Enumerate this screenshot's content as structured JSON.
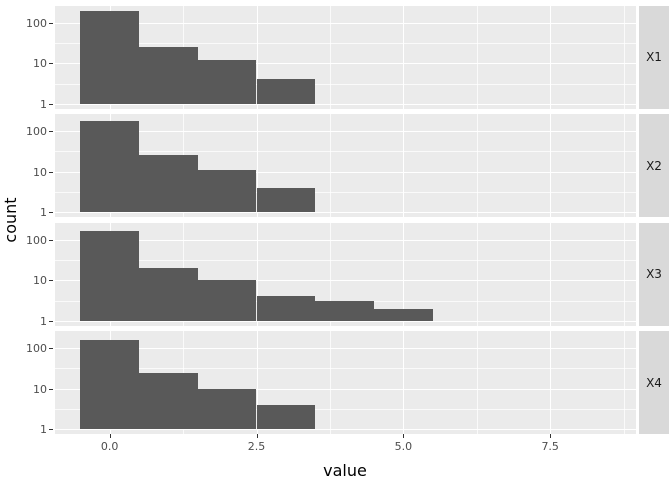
{
  "chart_data": {
    "type": "bar",
    "subtype": "faceted-histogram",
    "title": "",
    "xlabel": "value",
    "ylabel": "count",
    "x_tick_labels": [
      "0.0",
      "2.5",
      "5.0",
      "7.5"
    ],
    "x_ticks": [
      0.0,
      2.5,
      5.0,
      7.5
    ],
    "x_minor_ticks": [
      1.25,
      3.75,
      6.25,
      8.75
    ],
    "xlim": [
      -0.93,
      8.96
    ],
    "y_scale": "log10",
    "y_tick_labels": [
      "100",
      "10",
      "1"
    ],
    "y_ticks": [
      100,
      10,
      1
    ],
    "y_minor_ticks": [
      3.1623,
      31.623
    ],
    "ylim_log10": [
      -0.116,
      2.42
    ],
    "binwidth": 1,
    "grid": true,
    "legend_position": "none",
    "facet_side": "right",
    "facets": [
      {
        "label": "X1",
        "bin_centers": [
          0,
          1,
          2,
          3
        ],
        "counts": [
          190,
          25,
          12,
          4
        ]
      },
      {
        "label": "X2",
        "bin_centers": [
          0,
          1,
          2,
          3
        ],
        "counts": [
          178,
          26,
          11,
          4
        ]
      },
      {
        "label": "X3",
        "bin_centers": [
          0,
          1,
          2,
          3,
          4,
          5
        ],
        "counts": [
          165,
          20,
          10,
          4,
          3,
          2
        ]
      },
      {
        "label": "X4",
        "bin_centers": [
          0,
          1,
          2,
          3
        ],
        "counts": [
          158,
          25,
          10,
          4
        ]
      }
    ],
    "colors": {
      "bar_fill": "#595959",
      "panel_background": "#EBEBEB",
      "strip_background": "#D9D9D9",
      "gridline": "#FFFFFF",
      "tick_label": "#4D4D4D",
      "axis_title": "#000000",
      "strip_text": "#1A1A1A",
      "figure_background": "#FFFFFF"
    }
  }
}
